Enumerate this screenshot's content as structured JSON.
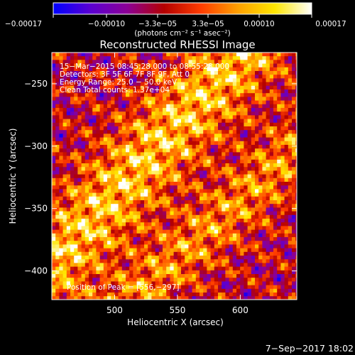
{
  "chart_data": {
    "type": "heatmap",
    "title": "Reconstructed RHESSI Image",
    "xlabel": "Heliocentric X (arcsec)",
    "ylabel": "Heliocentric Y (arcsec)",
    "xlim": [
      450,
      645
    ],
    "ylim": [
      -423,
      -225
    ],
    "x_ticks": [
      500,
      550,
      600
    ],
    "y_ticks": [
      -250,
      -300,
      -350,
      -400
    ],
    "x_tick_labels": [
      "500",
      "550",
      "600"
    ],
    "y_tick_labels": [
      "−250",
      "−300",
      "−350",
      "−400"
    ],
    "colorbar": {
      "range": [
        -0.00017,
        0.00017
      ],
      "tick_labels": [
        "−0.00017",
        "−0.00010",
        "−3.3e−05",
        "3.3e−05",
        "0.00010",
        "0.00017"
      ],
      "unit_label": "(photons cm⁻² s⁻¹ asec⁻²)",
      "colormap": [
        "#0000ff",
        "#5a00d2",
        "#8c0096",
        "#b40000",
        "#ff3c00",
        "#ffa000",
        "#ffe600",
        "#ffffff"
      ]
    },
    "annotations": [
      "15−Mar−2015 08:45:28.000 to 08:55:28.000",
      "Detectors: 3F 5F 6F 7F 8F 9F, Att 0",
      "Energy Range: 25.0 − 50.0 keV",
      "Clean     Total counts: 1.37e+04"
    ],
    "peak_label": "Position of Peak = [556,−297]",
    "grid": false
  },
  "footer": {
    "date": "7−Sep−2017 18:02"
  }
}
